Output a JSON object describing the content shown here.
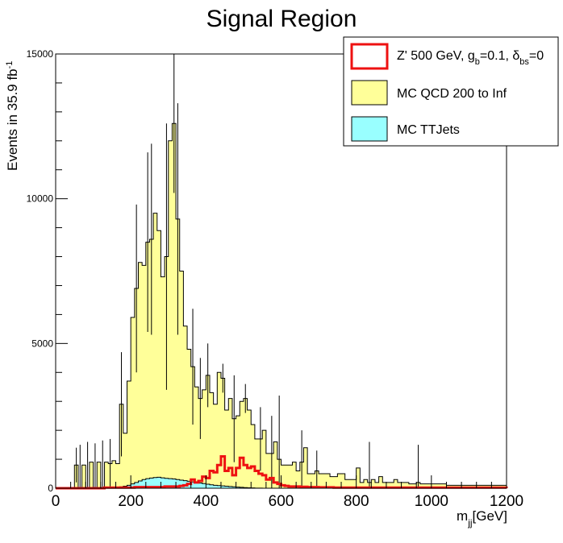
{
  "chart_data": {
    "type": "histogram",
    "title": "Signal Region",
    "xlabel": {
      "main": "m",
      "sub": "jj",
      "rest": "[GeV]"
    },
    "ylabel": {
      "main": "Events in 35.9 fb",
      "sup": "-1"
    },
    "xlim": [
      0,
      1200
    ],
    "ylim": [
      0,
      15000
    ],
    "xticks": [
      "0",
      "200",
      "400",
      "600",
      "800",
      "1000",
      "1200"
    ],
    "yticks": [
      "0",
      "5000",
      "10000",
      "15000"
    ],
    "grid": false,
    "legend_position": "top-right",
    "bin_width": 10,
    "bin_start": 0,
    "series": [
      {
        "name": "Z' 500 GeV, g_b=0.1, δ_bs=0",
        "legend": {
          "main": "Z' 500 GeV, g",
          "sub1": "b",
          "mid": "=0.1, δ",
          "sub2": "bs",
          "end": "=0"
        },
        "style": "line",
        "color": "#ee1111",
        "values": [
          0,
          0,
          0,
          0,
          0,
          0,
          0,
          0,
          0,
          0,
          0,
          0,
          0,
          20,
          20,
          20,
          20,
          20,
          20,
          20,
          20,
          40,
          40,
          40,
          40,
          40,
          40,
          40,
          40,
          60,
          60,
          60,
          60,
          80,
          100,
          150,
          300,
          200,
          250,
          400,
          350,
          600,
          550,
          800,
          1100,
          600,
          700,
          450,
          700,
          1050,
          800,
          700,
          750,
          600,
          500,
          450,
          300,
          350,
          200,
          150,
          100,
          80,
          60,
          60,
          60,
          50,
          50,
          40,
          40,
          40,
          30,
          30,
          30,
          30,
          20,
          20,
          20,
          20,
          20,
          20,
          20,
          20,
          20,
          20,
          20,
          20,
          20,
          20,
          20,
          20,
          20,
          20,
          20,
          20,
          20,
          20,
          20,
          20,
          20,
          20,
          20,
          20,
          20,
          20,
          20,
          20,
          20,
          20,
          20,
          20,
          20,
          20,
          20,
          20,
          20,
          20,
          20,
          20,
          20,
          20
        ]
      },
      {
        "name": "MC QCD 200 to Inf",
        "style": "fill",
        "color": "#ffff99",
        "values": [
          0,
          0,
          0,
          0,
          0,
          800,
          0,
          800,
          0,
          900,
          0,
          900,
          0,
          900,
          850,
          950,
          850,
          2900,
          1900,
          3700,
          5900,
          6900,
          7800,
          7700,
          8500,
          8600,
          9500,
          8900,
          7300,
          8000,
          12000,
          12600,
          9300,
          7500,
          5600,
          4800,
          4200,
          3500,
          3100,
          3400,
          3900,
          3300,
          2900,
          4000,
          3800,
          2700,
          3100,
          2400,
          2500,
          3000,
          3100,
          2700,
          2200,
          1700,
          1700,
          2000,
          1200,
          1200,
          1600,
          1000,
          800,
          800,
          800,
          900,
          600,
          900,
          1400,
          500,
          500,
          600,
          500,
          500,
          500,
          400,
          400,
          500,
          500,
          300,
          300,
          300,
          700,
          200,
          300,
          200,
          300,
          200,
          400,
          200,
          200,
          200,
          300,
          200,
          200,
          200,
          150,
          150,
          200,
          150,
          150,
          150,
          150,
          150,
          150,
          150,
          100,
          100,
          100,
          100,
          100,
          100,
          100,
          100,
          100,
          100,
          100,
          100,
          100,
          100,
          100,
          100
        ]
      },
      {
        "name": "MC TTJets",
        "style": "fill",
        "color": "#99ffff",
        "values": [
          0,
          0,
          0,
          0,
          0,
          0,
          0,
          0,
          0,
          0,
          0,
          0,
          0,
          0,
          0,
          0,
          30,
          50,
          70,
          100,
          150,
          200,
          250,
          300,
          330,
          350,
          370,
          380,
          360,
          340,
          330,
          320,
          300,
          280,
          260,
          240,
          220,
          200,
          180,
          160,
          140,
          120,
          100,
          90,
          80,
          70,
          60,
          50,
          40,
          30,
          20,
          15,
          10,
          5,
          5,
          0,
          0,
          0,
          0,
          0,
          0,
          0,
          0,
          0,
          0,
          0,
          0,
          0,
          0,
          0,
          0,
          0,
          0,
          0,
          0,
          0,
          0,
          0,
          0,
          0,
          0,
          0,
          0,
          0,
          0,
          0,
          0,
          0,
          0,
          0,
          0,
          0,
          0,
          0,
          0,
          0,
          0,
          0,
          0,
          0,
          0,
          0,
          0,
          0,
          0,
          0,
          0,
          0,
          0,
          0,
          0,
          0,
          0,
          0,
          0,
          0,
          0,
          0,
          0,
          0
        ]
      }
    ],
    "error_bars": [
      {
        "x": 55,
        "hi": 1400
      },
      {
        "x": 65,
        "hi": 1500
      },
      {
        "x": 85,
        "hi": 1600
      },
      {
        "x": 105,
        "hi": 1550
      },
      {
        "x": 125,
        "hi": 1650
      },
      {
        "x": 145,
        "hi": 1700
      },
      {
        "x": 175,
        "hi": 4700
      },
      {
        "x": 215,
        "hi": 9800
      },
      {
        "x": 245,
        "hi": 11600
      },
      {
        "x": 255,
        "hi": 11900
      },
      {
        "x": 295,
        "hi": 12600
      },
      {
        "x": 315,
        "hi": 15000
      },
      {
        "x": 325,
        "hi": 13300
      },
      {
        "x": 365,
        "hi": 6200
      },
      {
        "x": 385,
        "hi": 4500
      },
      {
        "x": 405,
        "hi": 5000
      },
      {
        "x": 445,
        "hi": 4300
      },
      {
        "x": 475,
        "hi": 3900
      },
      {
        "x": 505,
        "hi": 3600
      },
      {
        "x": 545,
        "hi": 2800
      },
      {
        "x": 575,
        "hi": 2500
      },
      {
        "x": 595,
        "hi": 3200
      },
      {
        "x": 655,
        "hi": 2000
      },
      {
        "x": 695,
        "hi": 1300
      },
      {
        "x": 835,
        "hi": 1600
      },
      {
        "x": 965,
        "hi": 1500
      }
    ]
  }
}
